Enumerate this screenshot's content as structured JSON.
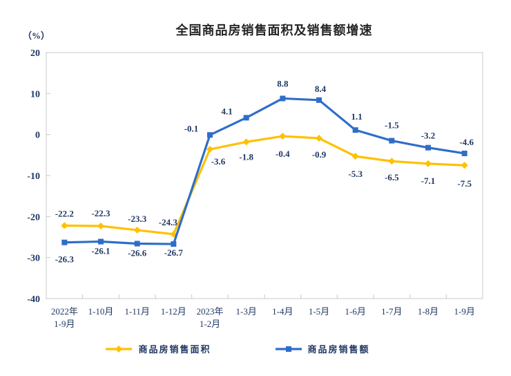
{
  "chart_data": {
    "type": "line",
    "title": "全国商品房销售面积及销售额增速",
    "unit_label": "（%）",
    "categories": [
      [
        "2022年",
        "1-9月"
      ],
      [
        "1-10月"
      ],
      [
        "1-11月"
      ],
      [
        "1-12月"
      ],
      [
        "2023年",
        "1-2月"
      ],
      [
        "1-3月"
      ],
      [
        "1-4月"
      ],
      [
        "1-5月"
      ],
      [
        "1-6月"
      ],
      [
        "1-7月"
      ],
      [
        "1-8月"
      ],
      [
        "1-9月"
      ]
    ],
    "series": [
      {
        "name": "商品房销售面积",
        "color": "#FFC000",
        "marker": "diamond",
        "values": [
          -22.2,
          -22.3,
          -23.3,
          -24.3,
          -3.6,
          -1.8,
          -0.4,
          -0.9,
          -5.3,
          -6.5,
          -7.1,
          -7.5
        ],
        "labels": {
          "side": [
            "above",
            "above",
            "above",
            "above",
            "below",
            "below",
            "below",
            "below",
            "below",
            "below",
            "below",
            "below"
          ],
          "dx": [
            0,
            0,
            0,
            -8,
            12,
            0,
            0,
            0,
            0,
            0,
            0,
            0
          ],
          "dy": [
            -4,
            -5,
            -3,
            -4,
            -2,
            2,
            6,
            4,
            6,
            4,
            5,
            7
          ]
        }
      },
      {
        "name": "商品房销售额",
        "color": "#2E6EC8",
        "marker": "square",
        "values": [
          -26.3,
          -26.1,
          -26.6,
          -26.7,
          -0.1,
          4.1,
          8.8,
          8.4,
          1.1,
          -1.5,
          -3.2,
          -4.6
        ],
        "labels": {
          "side": [
            "below",
            "below",
            "below",
            "below",
            "above",
            "above",
            "above",
            "above",
            "above",
            "above",
            "above",
            "above"
          ],
          "dx": [
            0,
            0,
            0,
            0,
            -27,
            -28,
            0,
            2,
            2,
            0,
            0,
            3
          ],
          "dy": [
            5,
            -6,
            -6,
            -7,
            4,
            4,
            -8,
            -3,
            -6,
            -9,
            -4,
            -3
          ]
        }
      }
    ],
    "ylim": [
      -40,
      20
    ],
    "yticks": [
      20,
      10,
      0,
      -10,
      -20,
      -30,
      -40
    ],
    "grid": false,
    "legend_position": "bottom",
    "frame_color": "#C8C8C8",
    "axis_label_color": "#203864",
    "title_color": "#262626"
  }
}
